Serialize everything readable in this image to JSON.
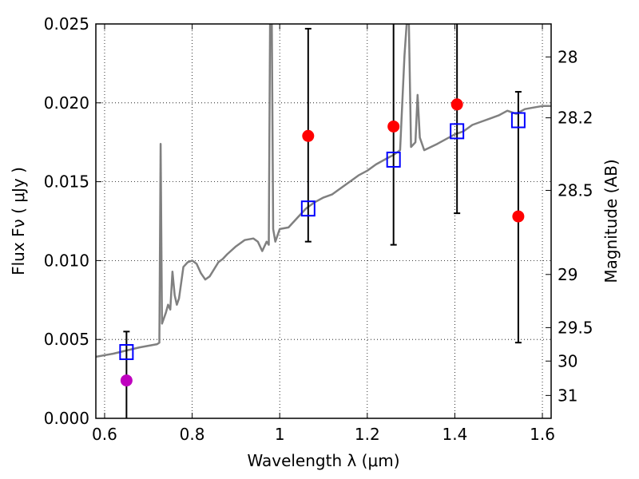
{
  "chart_data": {
    "type": "scatter",
    "xlabel": "Wavelength  λ (μm)",
    "ylabel": "Flux  Fν  ( μJy )",
    "y2label": "Magnitude (AB)",
    "xlim": [
      0.58,
      1.62
    ],
    "ylim": [
      0.0,
      0.025
    ],
    "grid": true,
    "x_ticks": [
      0.6,
      0.8,
      1.0,
      1.2,
      1.4,
      1.6
    ],
    "x_tick_labels": [
      "0.6",
      "0.8",
      "1",
      "1.2",
      "1.4",
      "1.6"
    ],
    "y_ticks": [
      0.0,
      0.005,
      0.01,
      0.015,
      0.02,
      0.025
    ],
    "y_tick_labels": [
      "0.000",
      "0.005",
      "0.010",
      "0.015",
      "0.020",
      "0.025"
    ],
    "y2_ticks": [
      {
        "label": "28",
        "flux": 0.02291
      },
      {
        "label": "28.2",
        "flux": 0.01905
      },
      {
        "label": "28.5",
        "flux": 0.01445
      },
      {
        "label": "29",
        "flux": 0.00912
      },
      {
        "label": "29.5",
        "flux": 0.00575
      },
      {
        "label": "30",
        "flux": 0.00363
      },
      {
        "label": "31",
        "flux": 0.00145
      }
    ],
    "series": [
      {
        "kind": "line",
        "color": "#808080",
        "points": [
          [
            0.58,
            0.0039
          ],
          [
            0.62,
            0.0041
          ],
          [
            0.65,
            0.0043
          ],
          [
            0.68,
            0.0045
          ],
          [
            0.7,
            0.0046
          ],
          [
            0.72,
            0.0047
          ],
          [
            0.725,
            0.0048
          ],
          [
            0.728,
            0.0174
          ],
          [
            0.731,
            0.006
          ],
          [
            0.74,
            0.0067
          ],
          [
            0.745,
            0.0072
          ],
          [
            0.75,
            0.0069
          ],
          [
            0.755,
            0.0093
          ],
          [
            0.76,
            0.0078
          ],
          [
            0.765,
            0.0072
          ],
          [
            0.77,
            0.0076
          ],
          [
            0.78,
            0.0096
          ],
          [
            0.79,
            0.0099
          ],
          [
            0.8,
            0.01
          ],
          [
            0.81,
            0.0098
          ],
          [
            0.82,
            0.0092
          ],
          [
            0.83,
            0.0088
          ],
          [
            0.84,
            0.009
          ],
          [
            0.86,
            0.0099
          ],
          [
            0.87,
            0.0101
          ],
          [
            0.88,
            0.0104
          ],
          [
            0.9,
            0.0109
          ],
          [
            0.92,
            0.0113
          ],
          [
            0.94,
            0.0114
          ],
          [
            0.95,
            0.0112
          ],
          [
            0.96,
            0.0106
          ],
          [
            0.97,
            0.0112
          ],
          [
            0.975,
            0.011
          ],
          [
            0.978,
            0.025
          ],
          [
            0.982,
            0.025
          ],
          [
            0.985,
            0.012
          ],
          [
            0.99,
            0.0112
          ],
          [
            1.0,
            0.012
          ],
          [
            1.02,
            0.0121
          ],
          [
            1.04,
            0.0127
          ],
          [
            1.06,
            0.0133
          ],
          [
            1.08,
            0.0137
          ],
          [
            1.1,
            0.014
          ],
          [
            1.12,
            0.0142
          ],
          [
            1.14,
            0.0146
          ],
          [
            1.16,
            0.015
          ],
          [
            1.18,
            0.0154
          ],
          [
            1.2,
            0.0157
          ],
          [
            1.22,
            0.0161
          ],
          [
            1.24,
            0.0164
          ],
          [
            1.26,
            0.0167
          ],
          [
            1.275,
            0.017
          ],
          [
            1.285,
            0.023
          ],
          [
            1.29,
            0.025
          ],
          [
            1.295,
            0.025
          ],
          [
            1.3,
            0.0172
          ],
          [
            1.31,
            0.0175
          ],
          [
            1.315,
            0.0205
          ],
          [
            1.32,
            0.0178
          ],
          [
            1.33,
            0.017
          ],
          [
            1.36,
            0.0174
          ],
          [
            1.38,
            0.0177
          ],
          [
            1.4,
            0.018
          ],
          [
            1.42,
            0.0182
          ],
          [
            1.44,
            0.0186
          ],
          [
            1.46,
            0.0188
          ],
          [
            1.48,
            0.019
          ],
          [
            1.5,
            0.0192
          ],
          [
            1.52,
            0.0195
          ],
          [
            1.54,
            0.0193
          ],
          [
            1.56,
            0.0196
          ],
          [
            1.58,
            0.0197
          ],
          [
            1.6,
            0.0198
          ],
          [
            1.62,
            0.0198
          ]
        ]
      },
      {
        "kind": "errorbar",
        "color": "#000000",
        "bars": [
          {
            "x": 0.65,
            "low": 0.0,
            "high": 0.0055
          },
          {
            "x": 1.065,
            "low": 0.0112,
            "high": 0.0247
          },
          {
            "x": 1.26,
            "low": 0.011,
            "high": 0.025
          },
          {
            "x": 1.405,
            "low": 0.013,
            "high": 0.025
          },
          {
            "x": 1.545,
            "low": 0.0048,
            "high": 0.0207
          }
        ]
      },
      {
        "kind": "square",
        "color": "#0000ff",
        "points": [
          [
            0.65,
            0.0042
          ],
          [
            1.065,
            0.0133
          ],
          [
            1.26,
            0.0164
          ],
          [
            1.405,
            0.0182
          ],
          [
            1.545,
            0.0189
          ]
        ]
      },
      {
        "kind": "circle",
        "color": "#ff0000",
        "points": [
          [
            1.065,
            0.0179
          ],
          [
            1.26,
            0.0185
          ],
          [
            1.405,
            0.0199
          ],
          [
            1.545,
            0.0128
          ]
        ]
      },
      {
        "kind": "circle",
        "color": "#bf00bf",
        "points": [
          [
            0.65,
            0.0024
          ]
        ]
      }
    ]
  }
}
